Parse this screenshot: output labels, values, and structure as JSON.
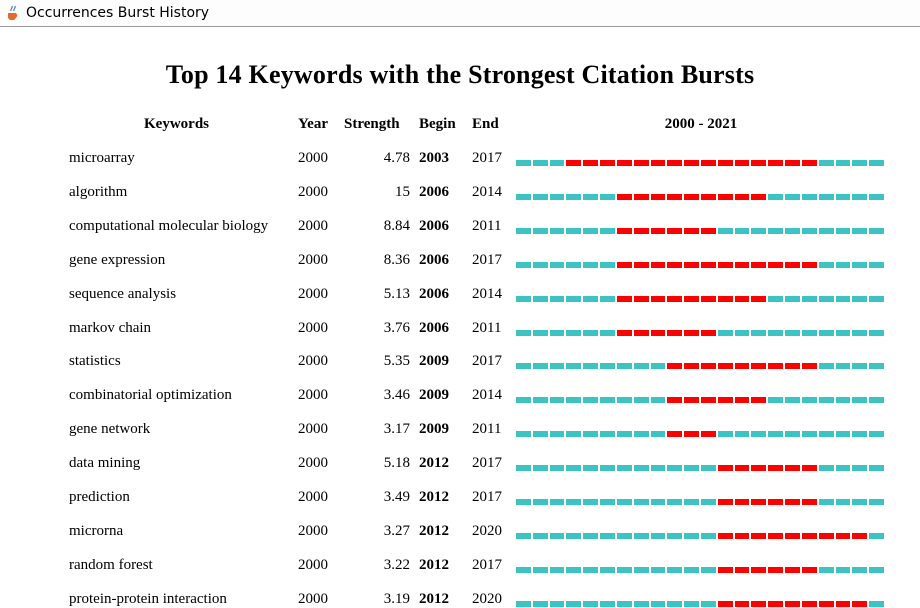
{
  "window": {
    "title": "Occurrences Burst History"
  },
  "report": {
    "title": "Top 14 Keywords with the Strongest Citation Bursts",
    "headers": {
      "keywords": "Keywords",
      "year": "Year",
      "strength": "Strength",
      "begin": "Begin",
      "end": "End",
      "range": "2000 - 2021"
    },
    "range_start": 2000,
    "range_end": 2021,
    "colors": {
      "burst": "#ff0000",
      "normal": "#3ec3c3"
    },
    "rows": [
      {
        "keyword": "microarray",
        "year": "2000",
        "strength": "4.78",
        "begin": "2003",
        "end": "2017"
      },
      {
        "keyword": "algorithm",
        "year": "2000",
        "strength": "15",
        "begin": "2006",
        "end": "2014"
      },
      {
        "keyword": "computational molecular biology",
        "year": "2000",
        "strength": "8.84",
        "begin": "2006",
        "end": "2011"
      },
      {
        "keyword": "gene expression",
        "year": "2000",
        "strength": "8.36",
        "begin": "2006",
        "end": "2017"
      },
      {
        "keyword": "sequence analysis",
        "year": "2000",
        "strength": "5.13",
        "begin": "2006",
        "end": "2014"
      },
      {
        "keyword": "markov chain",
        "year": "2000",
        "strength": "3.76",
        "begin": "2006",
        "end": "2011"
      },
      {
        "keyword": "statistics",
        "year": "2000",
        "strength": "5.35",
        "begin": "2009",
        "end": "2017"
      },
      {
        "keyword": "combinatorial optimization",
        "year": "2000",
        "strength": "3.46",
        "begin": "2009",
        "end": "2014"
      },
      {
        "keyword": "gene network",
        "year": "2000",
        "strength": "3.17",
        "begin": "2009",
        "end": "2011"
      },
      {
        "keyword": "data mining",
        "year": "2000",
        "strength": "5.18",
        "begin": "2012",
        "end": "2017"
      },
      {
        "keyword": "prediction",
        "year": "2000",
        "strength": "3.49",
        "begin": "2012",
        "end": "2017"
      },
      {
        "keyword": "microrna",
        "year": "2000",
        "strength": "3.27",
        "begin": "2012",
        "end": "2020"
      },
      {
        "keyword": "random forest",
        "year": "2000",
        "strength": "3.22",
        "begin": "2012",
        "end": "2017"
      },
      {
        "keyword": "protein-protein interaction",
        "year": "2000",
        "strength": "3.19",
        "begin": "2012",
        "end": "2020"
      }
    ]
  }
}
